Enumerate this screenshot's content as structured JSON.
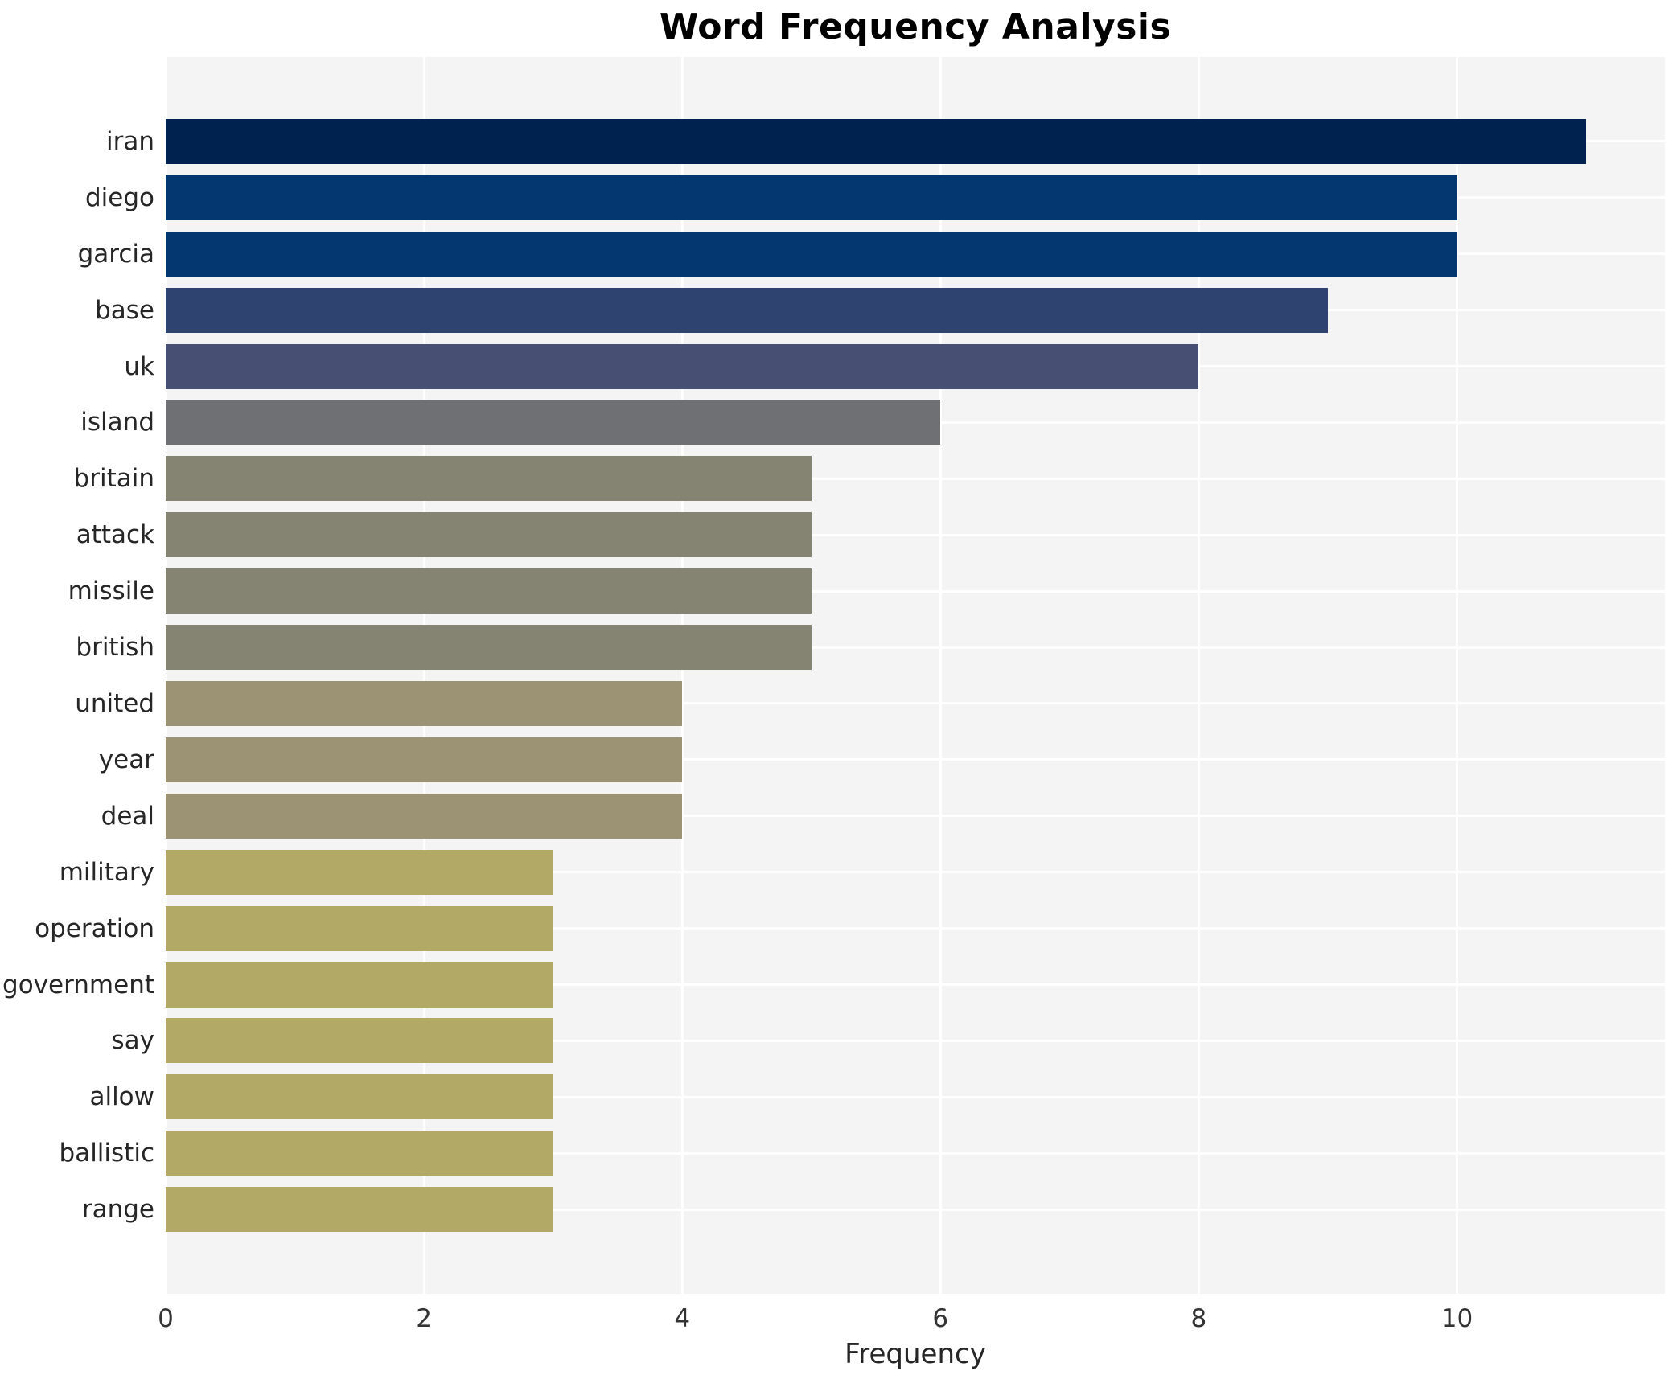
{
  "chart_data": {
    "type": "bar",
    "orientation": "horizontal",
    "title": "Word Frequency Analysis",
    "xlabel": "Frequency",
    "ylabel": "",
    "categories": [
      "iran",
      "diego",
      "garcia",
      "base",
      "uk",
      "island",
      "britain",
      "attack",
      "missile",
      "british",
      "united",
      "year",
      "deal",
      "military",
      "operation",
      "government",
      "say",
      "allow",
      "ballistic",
      "range"
    ],
    "values": [
      11,
      10,
      10,
      9,
      8,
      6,
      5,
      5,
      5,
      5,
      4,
      4,
      4,
      3,
      3,
      3,
      3,
      3,
      3,
      3
    ],
    "bar_colors": [
      "#00224e",
      "#04376f",
      "#04376f",
      "#2e4370",
      "#475072",
      "#6e7073",
      "#858371",
      "#858371",
      "#858371",
      "#858371",
      "#9c9374",
      "#9c9374",
      "#9c9374",
      "#b3a966",
      "#b3a966",
      "#b3a966",
      "#b3a966",
      "#b3a966",
      "#b3a966",
      "#b3a966"
    ],
    "x_ticks": [
      0,
      2,
      4,
      6,
      8,
      10
    ],
    "xlim": [
      0,
      11.61
    ],
    "grid": true,
    "legend": false,
    "plot_background": "#f5f4f4",
    "grid_color": "#ffffff",
    "text_color": "#262626"
  }
}
